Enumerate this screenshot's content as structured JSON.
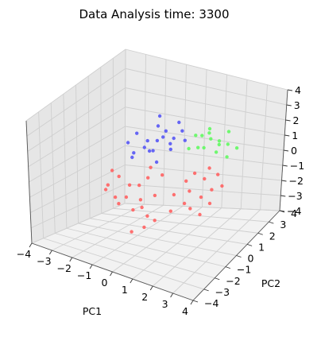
{
  "chart_data": {
    "type": "scatter",
    "projection": "3d",
    "title": "Data Analysis time: 3300",
    "xlabel": "PC1",
    "ylabel": "PC2",
    "zlabel": "",
    "xlim": [
      -4,
      4
    ],
    "ylim": [
      -4,
      4
    ],
    "zlim": [
      -4,
      4
    ],
    "x_ticks": [
      "−4",
      "−3",
      "−2",
      "−1",
      "0",
      "1",
      "2",
      "3",
      "4"
    ],
    "y_ticks": [
      "−4",
      "−3",
      "−2",
      "−1",
      "0",
      "1",
      "2",
      "3",
      "4"
    ],
    "z_ticks": [
      "−4",
      "−3",
      "−2",
      "−1",
      "0",
      "1",
      "2",
      "3",
      "4"
    ],
    "grid": true,
    "series": [
      {
        "color": "#ff6262",
        "points": [
          [
            -2.4,
            0.8,
            -1.2
          ],
          [
            -2.1,
            1.2,
            -1.8
          ],
          [
            -1.8,
            0.4,
            -2.1
          ],
          [
            -2.6,
            0.2,
            -1.5
          ],
          [
            -1.5,
            1.0,
            -1.6
          ],
          [
            -1.2,
            0.6,
            -2.2
          ],
          [
            -2.0,
            -0.2,
            -1.9
          ],
          [
            -1.6,
            -0.6,
            -2.0
          ],
          [
            -0.9,
            0.2,
            -2.4
          ],
          [
            -1.3,
            1.4,
            -1.3
          ],
          [
            -2.8,
            0.9,
            -1.0
          ],
          [
            -0.6,
            0.8,
            -1.9
          ],
          [
            -1.0,
            -0.4,
            -2.3
          ],
          [
            -2.3,
            -0.5,
            -1.4
          ],
          [
            -0.4,
            -0.2,
            -2.6
          ],
          [
            0.5,
            1.6,
            -1.2
          ],
          [
            0.9,
            1.2,
            -1.5
          ],
          [
            1.3,
            1.8,
            -1.0
          ],
          [
            1.6,
            1.0,
            -1.6
          ],
          [
            1.0,
            0.6,
            -1.9
          ],
          [
            1.9,
            1.4,
            -1.3
          ],
          [
            0.7,
            2.0,
            -0.9
          ],
          [
            1.4,
            0.4,
            -2.0
          ],
          [
            2.1,
            0.9,
            -1.8
          ],
          [
            1.8,
            2.1,
            -0.8
          ],
          [
            0.3,
            0.9,
            -1.7
          ],
          [
            2.3,
            1.6,
            -1.1
          ],
          [
            1.2,
            2.4,
            -0.7
          ],
          [
            0.6,
            0.1,
            -2.2
          ],
          [
            2.0,
            0.2,
            -2.1
          ],
          [
            -0.1,
            -1.0,
            -2.8
          ],
          [
            -0.5,
            -1.4,
            -3.0
          ],
          [
            0.2,
            -0.6,
            -2.5
          ],
          [
            -1.4,
            1.8,
            -0.9
          ],
          [
            -0.7,
            1.6,
            -1.1
          ]
        ]
      },
      {
        "color": "#5656f5",
        "points": [
          [
            -1.6,
            1.6,
            0.3
          ],
          [
            -1.2,
            2.0,
            0.6
          ],
          [
            -0.8,
            1.8,
            1.0
          ],
          [
            -1.9,
            1.2,
            0.1
          ],
          [
            -1.0,
            1.3,
            0.4
          ],
          [
            -0.5,
            2.2,
            0.8
          ],
          [
            -1.4,
            2.4,
            1.2
          ],
          [
            -0.9,
            2.6,
            0.2
          ],
          [
            -2.1,
            1.8,
            0.9
          ],
          [
            -0.3,
            1.6,
            0.5
          ],
          [
            -1.7,
            2.2,
            -0.2
          ],
          [
            -1.1,
            1.0,
            1.1
          ],
          [
            -0.6,
            2.8,
            1.4
          ],
          [
            -2.3,
            1.4,
            0.5
          ],
          [
            -1.3,
            2.9,
            0.7
          ],
          [
            -0.2,
            2.4,
            1.2
          ],
          [
            -1.8,
            0.9,
            0.0
          ],
          [
            -0.7,
            1.1,
            -0.1
          ],
          [
            -1.5,
            2.7,
            1.6
          ],
          [
            -0.4,
            3.0,
            0.3
          ]
        ]
      },
      {
        "color": "#62fa62",
        "points": [
          [
            0.6,
            2.4,
            0.4
          ],
          [
            1.0,
            2.8,
            0.8
          ],
          [
            1.4,
            2.6,
            0.2
          ],
          [
            0.8,
            3.0,
            1.0
          ],
          [
            1.8,
            2.9,
            0.6
          ],
          [
            0.3,
            2.7,
            0.9
          ],
          [
            1.2,
            3.2,
            0.5
          ],
          [
            2.0,
            2.5,
            0.1
          ],
          [
            0.9,
            2.2,
            1.3
          ],
          [
            1.6,
            3.3,
            1.1
          ],
          [
            0.5,
            3.1,
            0.0
          ],
          [
            2.2,
            3.0,
            0.4
          ],
          [
            1.1,
            2.5,
            1.6
          ],
          [
            0.2,
            2.3,
            0.3
          ],
          [
            1.7,
            2.3,
            0.9
          ]
        ]
      }
    ]
  }
}
